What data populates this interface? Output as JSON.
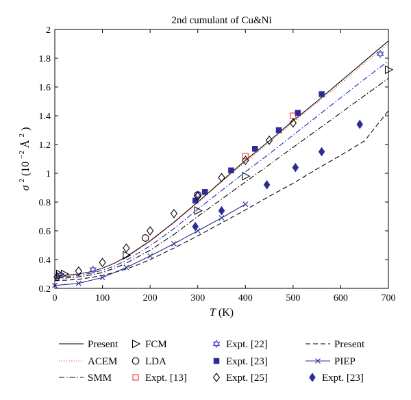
{
  "chart_data": {
    "type": "line",
    "title": "2nd cumulant of Cu&Ni",
    "xlabel_var": "T",
    "xlabel_unit": "(K)",
    "ylabel": {
      "sym": "σ",
      "exp": "2",
      "pre": "(10",
      "mid": " Å",
      "post": ")"
    },
    "xlim": [
      0,
      700
    ],
    "ylim": [
      0.2,
      2.0
    ],
    "x_ticks": [
      0,
      100,
      200,
      300,
      400,
      500,
      600,
      700
    ],
    "y_ticks": [
      0.2,
      0.4,
      0.6,
      0.8,
      1.0,
      1.2,
      1.4,
      1.6,
      1.8,
      2.0
    ],
    "x_tick_labels": [
      "0",
      "100",
      "200",
      "300",
      "400",
      "500",
      "600",
      "700"
    ],
    "y_tick_labels": [
      "0.2",
      "0.4",
      "0.6",
      "0.8",
      "1",
      "1.2",
      "1.4",
      "1.6",
      "1.8",
      "2"
    ],
    "grid": false,
    "legend_position": "bottom",
    "series": [
      {
        "name": "Present",
        "kind": "line",
        "style": "solid",
        "color": "#000000",
        "x": [
          0,
          25,
          50,
          75,
          100,
          125,
          150,
          175,
          200,
          250,
          300,
          350,
          400,
          450,
          500,
          550,
          600,
          650,
          700
        ],
        "y": [
          0.29,
          0.292,
          0.3,
          0.315,
          0.34,
          0.375,
          0.42,
          0.475,
          0.53,
          0.66,
          0.8,
          0.945,
          1.09,
          1.225,
          1.365,
          1.5,
          1.64,
          1.78,
          1.92
        ]
      },
      {
        "name": "ACEM",
        "kind": "line",
        "style": "dotted",
        "color": "#e8392b",
        "x": [
          0,
          25,
          50,
          75,
          100,
          125,
          150,
          175,
          200,
          250,
          300,
          350,
          400,
          450,
          500,
          550,
          600,
          650,
          700
        ],
        "y": [
          0.29,
          0.292,
          0.3,
          0.315,
          0.34,
          0.375,
          0.415,
          0.47,
          0.525,
          0.655,
          0.795,
          0.94,
          1.08,
          1.215,
          1.355,
          1.49,
          1.625,
          1.765,
          1.9
        ]
      },
      {
        "name": "SMM",
        "kind": "line",
        "style": "dashdot",
        "color": "#000000",
        "x": [
          0,
          25,
          50,
          75,
          100,
          125,
          150,
          175,
          200,
          250,
          300,
          350,
          400,
          450,
          500,
          550,
          600,
          650,
          700
        ],
        "y": [
          0.27,
          0.272,
          0.28,
          0.293,
          0.31,
          0.34,
          0.375,
          0.42,
          0.465,
          0.575,
          0.7,
          0.82,
          0.94,
          1.06,
          1.18,
          1.3,
          1.42,
          1.54,
          1.66
        ]
      },
      {
        "name": "",
        "kind": "line",
        "style": "dashdot",
        "color": "#2020c0",
        "x": [
          0,
          25,
          50,
          75,
          100,
          125,
          150,
          175,
          200,
          250,
          300,
          350,
          400,
          450,
          500,
          550,
          600,
          650,
          700
        ],
        "y": [
          0.28,
          0.282,
          0.29,
          0.305,
          0.325,
          0.355,
          0.395,
          0.445,
          0.495,
          0.615,
          0.75,
          0.88,
          1.01,
          1.135,
          1.265,
          1.395,
          1.525,
          1.655,
          1.78
        ]
      },
      {
        "name": "FCM",
        "kind": "marker",
        "marker": "triangle-right",
        "color": "#000000",
        "x": [
          10,
          20,
          150,
          300,
          400,
          700
        ],
        "y": [
          0.3,
          0.3,
          0.43,
          0.74,
          0.98,
          1.72
        ]
      },
      {
        "name": "LDA",
        "kind": "marker",
        "marker": "circle",
        "color": "#000000",
        "x": [
          190,
          300
        ],
        "y": [
          0.55,
          0.85
        ]
      },
      {
        "name": "Expt. [13]",
        "kind": "marker",
        "marker": "square-open",
        "color": "#e8392b",
        "x": [
          400,
          500
        ],
        "y": [
          1.12,
          1.4
        ]
      },
      {
        "name": "Expt. [22]",
        "kind": "marker",
        "marker": "hexagram",
        "color": "#4848c0",
        "x": [
          10,
          80,
          300,
          683
        ],
        "y": [
          0.29,
          0.33,
          0.85,
          1.83
        ]
      },
      {
        "name": "Expt. [23]",
        "kind": "marker",
        "marker": "square-filled",
        "color": "#2c2c96",
        "x": [
          295,
          315,
          370,
          420,
          470,
          510,
          560
        ],
        "y": [
          0.81,
          0.87,
          1.02,
          1.17,
          1.3,
          1.42,
          1.55
        ]
      },
      {
        "name": "Expt. [25]",
        "kind": "marker",
        "marker": "diamond-open",
        "color": "#000000",
        "x": [
          5,
          50,
          100,
          150,
          200,
          250,
          300,
          350,
          400,
          450,
          500
        ],
        "y": [
          0.28,
          0.32,
          0.38,
          0.48,
          0.6,
          0.72,
          0.84,
          0.97,
          1.09,
          1.23,
          1.35
        ]
      },
      {
        "name": "Present",
        "kind": "line",
        "style": "dashed",
        "color": "#000000",
        "x": [
          0,
          25,
          50,
          75,
          100,
          125,
          150,
          175,
          200,
          250,
          300,
          350,
          400,
          450,
          500,
          550,
          600,
          650,
          700
        ],
        "y": [
          0.255,
          0.257,
          0.263,
          0.275,
          0.29,
          0.31,
          0.335,
          0.365,
          0.4,
          0.48,
          0.565,
          0.655,
          0.745,
          0.84,
          0.93,
          1.03,
          1.125,
          1.225,
          1.435
        ]
      },
      {
        "name": "PIEP",
        "kind": "line-marker",
        "style": "solid",
        "marker": "x",
        "color": "#2c2c96",
        "x": [
          0,
          50,
          100,
          150,
          200,
          250,
          300,
          350,
          400
        ],
        "y": [
          0.22,
          0.235,
          0.275,
          0.345,
          0.425,
          0.51,
          0.6,
          0.69,
          0.785
        ]
      },
      {
        "name": "Expt. [23]",
        "kind": "marker",
        "marker": "diamond-filled",
        "color": "#2c2c96",
        "x": [
          295,
          350,
          445,
          505,
          560,
          640
        ],
        "y": [
          0.63,
          0.74,
          0.92,
          1.04,
          1.15,
          1.34
        ]
      }
    ]
  }
}
